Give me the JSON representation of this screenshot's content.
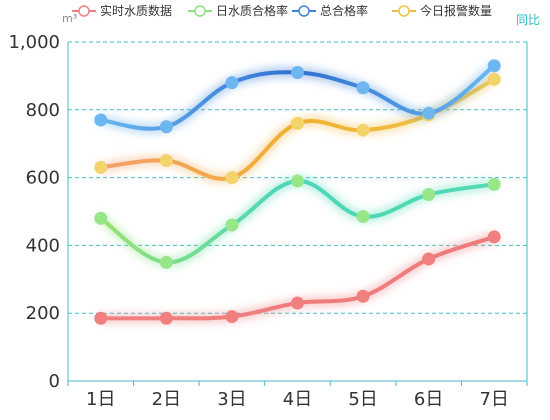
{
  "chart_data": {
    "type": "line",
    "categories": [
      "1日",
      "2日",
      "3日",
      "4日",
      "5日",
      "6日",
      "7日"
    ],
    "y_unit": "m³",
    "corner_label": "同比",
    "ylim": [
      0,
      1000
    ],
    "y_ticks": [
      "0",
      "200",
      "400",
      "600",
      "800",
      "1,000"
    ],
    "grid": true,
    "legend_position": "top",
    "series": [
      {
        "name": "实时水质数据",
        "color": "#f08080",
        "values": [
          185,
          185,
          190,
          230,
          250,
          360,
          425
        ]
      },
      {
        "name": "日水质合格率",
        "color": "#8ee07e",
        "values": [
          480,
          350,
          460,
          590,
          485,
          550,
          580
        ]
      },
      {
        "name": "总合格率",
        "color": "#3e84d6",
        "values": [
          770,
          750,
          880,
          910,
          865,
          790,
          930
        ]
      },
      {
        "name": "今日报警数量",
        "color": "#f0c04a",
        "values": [
          630,
          650,
          600,
          760,
          740,
          785,
          890
        ]
      }
    ]
  }
}
